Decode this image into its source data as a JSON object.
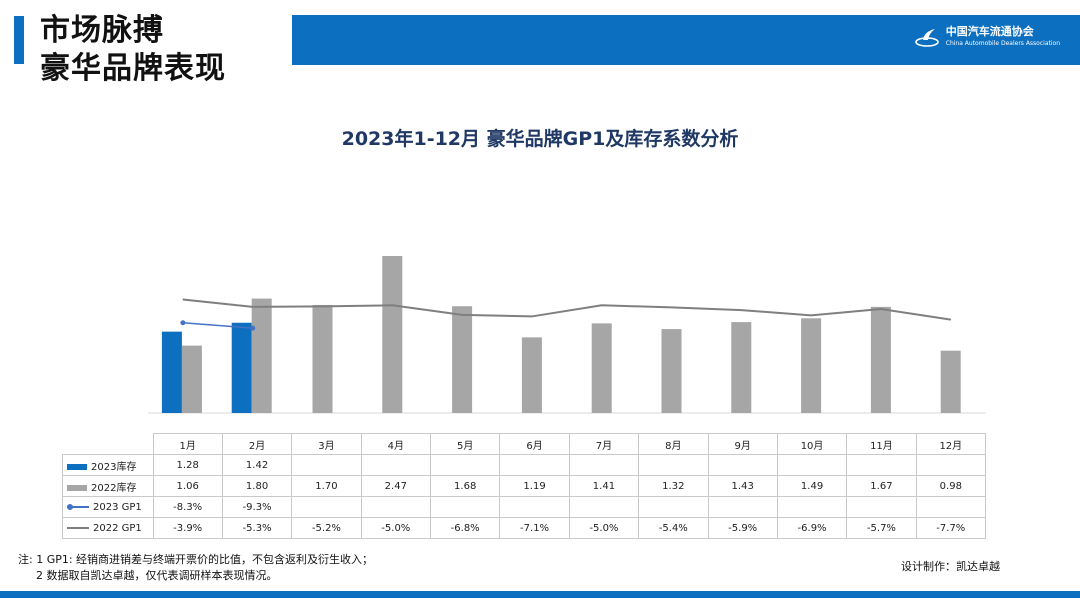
{
  "header": {
    "title_line1": "市场脉搏",
    "title_line2": "豪华品牌表现"
  },
  "logo": {
    "name_cn": "中国汽车流通协会",
    "name_en": "China Automobile Dealers Association"
  },
  "colors": {
    "brand_blue": "#0c6fc0",
    "bar_2022": "#a6a6a6",
    "line_2023": "#4472c4",
    "line_2022": "#7f7f7f",
    "title": "#1f3864"
  },
  "chart_data": {
    "type": "bar",
    "title": "2023年1-12月 豪华品牌GP1及库存系数分析",
    "categories": [
      "1月",
      "2月",
      "3月",
      "4月",
      "5月",
      "6月",
      "7月",
      "8月",
      "9月",
      "10月",
      "11月",
      "12月"
    ],
    "series": [
      {
        "name": "2023库存",
        "kind": "bar",
        "values": [
          1.28,
          1.42,
          null,
          null,
          null,
          null,
          null,
          null,
          null,
          null,
          null,
          null
        ],
        "labels": [
          "1.28",
          "1.42",
          "",
          "",
          "",
          "",
          "",
          "",
          "",
          "",
          "",
          ""
        ]
      },
      {
        "name": "2022库存",
        "kind": "bar",
        "values": [
          1.06,
          1.8,
          1.7,
          2.47,
          1.68,
          1.19,
          1.41,
          1.32,
          1.43,
          1.49,
          1.67,
          0.98
        ],
        "labels": [
          "1.06",
          "1.80",
          "1.70",
          "2.47",
          "1.68",
          "1.19",
          "1.41",
          "1.32",
          "1.43",
          "1.49",
          "1.67",
          "0.98"
        ]
      },
      {
        "name": "2023 GP1",
        "kind": "line",
        "values": [
          -8.3,
          -9.3,
          null,
          null,
          null,
          null,
          null,
          null,
          null,
          null,
          null,
          null
        ],
        "labels": [
          "-8.3%",
          "-9.3%",
          "",
          "",
          "",
          "",
          "",
          "",
          "",
          "",
          "",
          ""
        ]
      },
      {
        "name": "2022 GP1",
        "kind": "line",
        "values": [
          -3.9,
          -5.3,
          -5.2,
          -5.0,
          -6.8,
          -7.1,
          -5.0,
          -5.4,
          -5.9,
          -6.9,
          -5.7,
          -7.7
        ],
        "labels": [
          "-3.9%",
          "-5.3%",
          "-5.2%",
          "-5.0%",
          "-6.8%",
          "-7.1%",
          "-5.0%",
          "-5.4%",
          "-5.9%",
          "-6.9%",
          "-5.7%",
          "-7.7%"
        ]
      }
    ],
    "ylim_bars": [
      0,
      2.5
    ],
    "ylim_lines": [
      -25,
      0
    ],
    "axes_visible": false,
    "grid": false,
    "legend": "in data table"
  },
  "footnote": {
    "line1": "注: 1 GP1: 经销商进销差与终端开票价的比值，不包含返利及衍生收入；",
    "line2": "2 数据取自凯达卓越，仅代表调研样本表现情况。"
  },
  "credit": "设计制作：凯达卓越"
}
